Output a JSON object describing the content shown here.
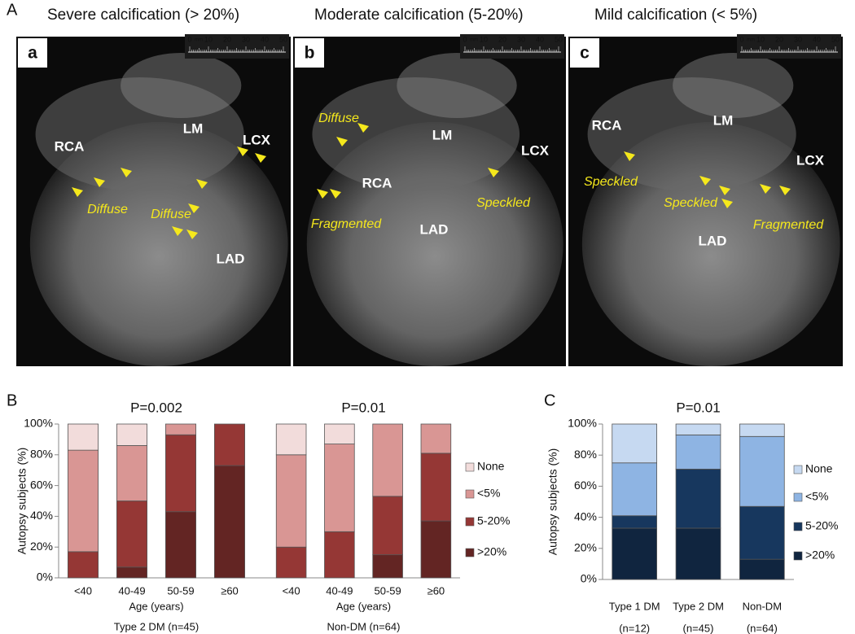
{
  "panel_a": {
    "label": "A",
    "scale_labels": [
      "0",
      "mm",
      "10",
      "20",
      "30",
      "40",
      "50"
    ],
    "panels": [
      {
        "letter": "a",
        "title": "Severe calcification (> 20%)",
        "labels": [
          "RCA",
          "LM",
          "LCX",
          "Diffuse",
          "Diffuse",
          "LAD"
        ]
      },
      {
        "letter": "b",
        "title": "Moderate calcification (5-20%)",
        "labels": [
          "Diffuse",
          "LM",
          "LCX",
          "RCA",
          "Speckled",
          "Fragmented",
          "LAD"
        ]
      },
      {
        "letter": "c",
        "title": "Mild calcification (< 5%)",
        "labels": [
          "RCA",
          "LM",
          "LCX",
          "Speckled",
          "Speckled",
          "Fragmented",
          "LAD"
        ]
      }
    ]
  },
  "panel_labels": [
    "B",
    "C"
  ],
  "chart_data": [
    {
      "type": "bar",
      "stacked": true,
      "ylabel": "Autopsy subjects (%)",
      "legend": "right",
      "ylim": [
        0,
        100
      ],
      "yticks": [
        {
          "value": 0,
          "label": "0%"
        },
        {
          "value": 20,
          "label": "20%"
        },
        {
          "value": 40,
          "label": "40%"
        },
        {
          "value": 60,
          "label": "60%"
        },
        {
          "value": 80,
          "label": "80%"
        },
        {
          "value": 100,
          "label": "100%"
        }
      ],
      "groups": [
        {
          "title": "P=0.002",
          "xlabel": "Age (years)",
          "label": "Type 2 DM (n=45)",
          "categories": [
            "<40",
            "40-49",
            "50-59",
            "≥60"
          ]
        },
        {
          "title": "P=0.01",
          "xlabel": "Age (years)",
          "label": "Non-DM (n=64)",
          "categories": [
            "<40",
            "40-49",
            "50-59",
            "≥60"
          ]
        }
      ],
      "series": [
        {
          "name": ">20%",
          "color": "#632523",
          "values": [
            0,
            7,
            43,
            73,
            0,
            0,
            15,
            37
          ]
        },
        {
          "name": "5-20%",
          "color": "#953735",
          "values": [
            17,
            43,
            50,
            27,
            20,
            30,
            38,
            44
          ]
        },
        {
          "name": "<5%",
          "color": "#d99694",
          "values": [
            66,
            36,
            7,
            0,
            60,
            57,
            47,
            19
          ]
        },
        {
          "name": "None",
          "color": "#f2dcdb",
          "values": [
            17,
            14,
            0,
            0,
            20,
            13,
            0,
            0
          ]
        }
      ]
    },
    {
      "type": "bar",
      "stacked": true,
      "title": "P=0.01",
      "ylabel": "Autopsy subjects (%)",
      "legend": "right",
      "ylim": [
        0,
        100
      ],
      "yticks": [
        {
          "value": 0,
          "label": "0%"
        },
        {
          "value": 20,
          "label": "20%"
        },
        {
          "value": 40,
          "label": "40%"
        },
        {
          "value": 60,
          "label": "60%"
        },
        {
          "value": 80,
          "label": "80%"
        },
        {
          "value": 100,
          "label": "100%"
        }
      ],
      "categories": [
        "Type 1 DM",
        "Type 2 DM",
        "Non-DM"
      ],
      "category_counts": [
        "(n=12)",
        "(n=45)",
        "(n=64)"
      ],
      "series": [
        {
          "name": ">20%",
          "color": "#10253f",
          "values": [
            33,
            33,
            13
          ]
        },
        {
          "name": "5-20%",
          "color": "#17375e",
          "values": [
            8,
            38,
            34
          ]
        },
        {
          "name": "<5%",
          "color": "#8eb4e3",
          "values": [
            34,
            22,
            45
          ]
        },
        {
          "name": "None",
          "color": "#c6d9f1",
          "values": [
            25,
            7,
            8
          ]
        }
      ]
    }
  ]
}
